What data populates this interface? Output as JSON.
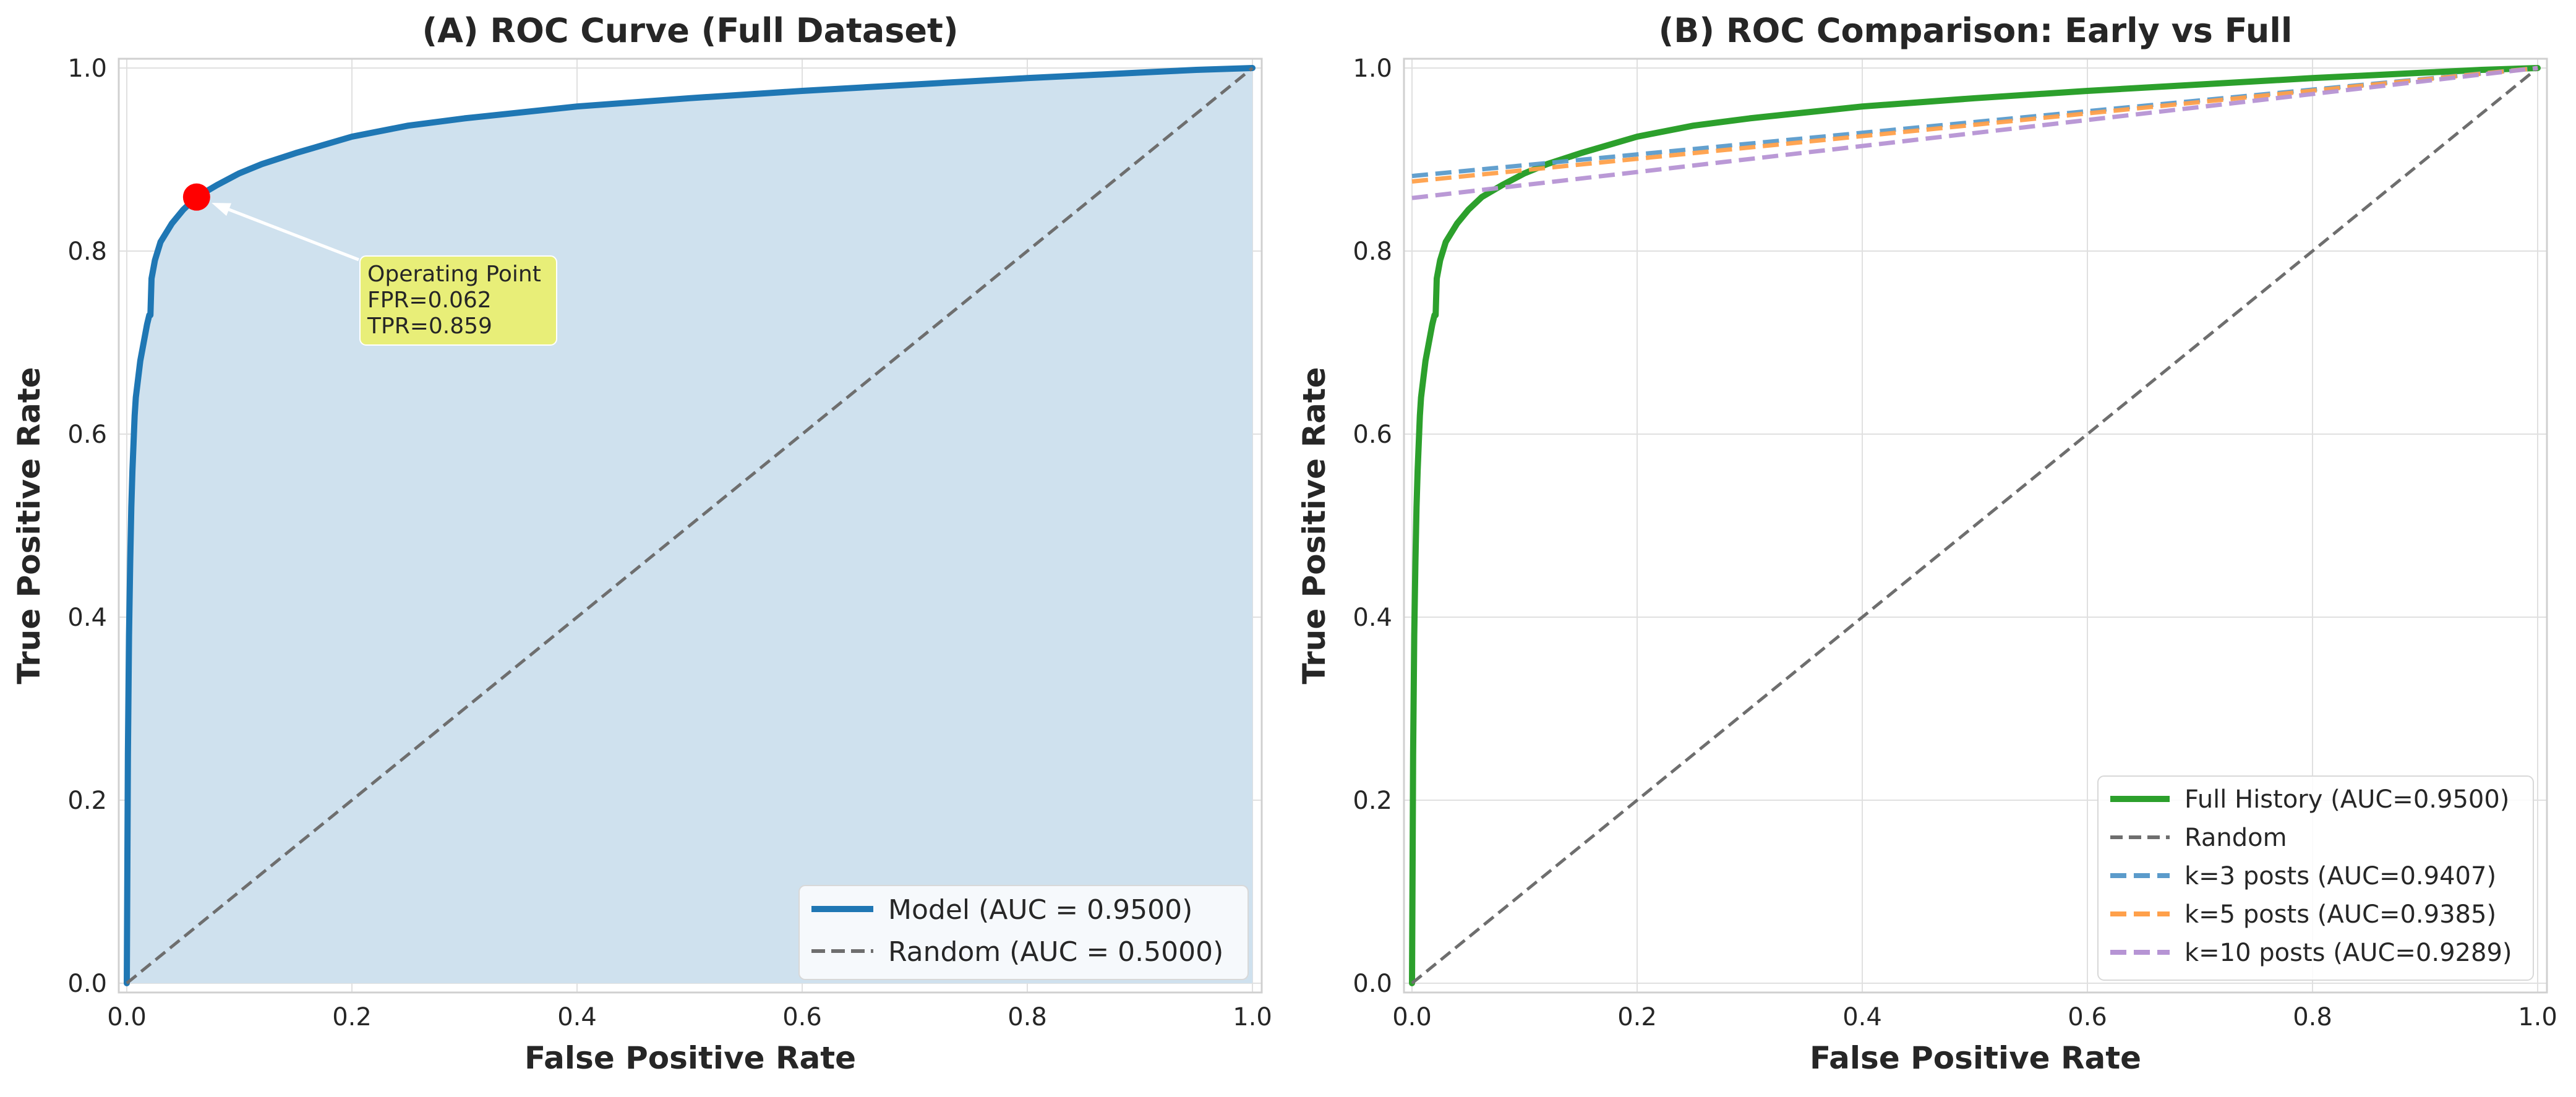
{
  "colors": {
    "model": "#1f77b4",
    "fill": "#cfe1ee",
    "random": "#6e6e6e",
    "grid": "#e0e0e0",
    "frame": "#d0d0d0",
    "operating_point": "#ff0000",
    "annot_box": "#e8ee78",
    "full_history": "#2ca02c",
    "k3": "#5b9bcb",
    "k5": "#ffa04a",
    "k10": "#b694d4"
  },
  "chart_data": [
    {
      "id": "A",
      "type": "line",
      "title": "(A) ROC Curve (Full Dataset)",
      "xlabel": "False Positive Rate",
      "ylabel": "True Positive Rate",
      "xlim": [
        0,
        1
      ],
      "ylim": [
        0,
        1
      ],
      "xticks": [
        "0.0",
        "0.2",
        "0.4",
        "0.6",
        "0.8",
        "1.0"
      ],
      "yticks": [
        "0.0",
        "0.2",
        "0.4",
        "0.6",
        "0.8",
        "1.0"
      ],
      "grid": true,
      "legend_position": "bottom-right",
      "series": [
        {
          "name": "Model (AUC = 0.9500)",
          "style": "solid",
          "color": "#1f77b4",
          "filled": true,
          "x": [
            0,
            0.001,
            0.002,
            0.003,
            0.004,
            0.005,
            0.006,
            0.007,
            0.008,
            0.01,
            0.012,
            0.015,
            0.018,
            0.02,
            0.021,
            0.022,
            0.025,
            0.03,
            0.04,
            0.05,
            0.062,
            0.08,
            0.1,
            0.12,
            0.15,
            0.2,
            0.25,
            0.3,
            0.4,
            0.5,
            0.6,
            0.7,
            0.8,
            0.9,
            0.95,
            1
          ],
          "y": [
            0,
            0.25,
            0.38,
            0.46,
            0.52,
            0.56,
            0.59,
            0.62,
            0.64,
            0.66,
            0.68,
            0.7,
            0.72,
            0.73,
            0.73,
            0.77,
            0.79,
            0.81,
            0.83,
            0.845,
            0.859,
            0.872,
            0.885,
            0.895,
            0.907,
            0.925,
            0.937,
            0.945,
            0.958,
            0.967,
            0.975,
            0.982,
            0.989,
            0.995,
            0.998,
            1
          ]
        },
        {
          "name": "Random (AUC = 0.5000)",
          "style": "dashed",
          "color": "#6e6e6e",
          "x": [
            0,
            1
          ],
          "y": [
            0,
            1
          ]
        }
      ],
      "operating_point": {
        "x": 0.062,
        "y": 0.859,
        "label_lines": [
          "Operating Point",
          "FPR=0.062",
          "TPR=0.859"
        ]
      }
    },
    {
      "id": "B",
      "type": "line",
      "title": "(B) ROC Comparison: Early vs Full",
      "xlabel": "False Positive Rate",
      "ylabel": "True Positive Rate",
      "xlim": [
        0,
        1
      ],
      "ylim": [
        0,
        1
      ],
      "xticks": [
        "0.0",
        "0.2",
        "0.4",
        "0.6",
        "0.8",
        "1.0"
      ],
      "yticks": [
        "0.0",
        "0.2",
        "0.4",
        "0.6",
        "0.8",
        "1.0"
      ],
      "grid": true,
      "legend_position": "bottom-right",
      "series": [
        {
          "name": "Full History (AUC=0.9500)",
          "style": "solid",
          "color": "#2ca02c",
          "x": [
            0,
            0.001,
            0.002,
            0.003,
            0.004,
            0.005,
            0.006,
            0.007,
            0.008,
            0.01,
            0.012,
            0.015,
            0.018,
            0.02,
            0.021,
            0.022,
            0.025,
            0.03,
            0.04,
            0.05,
            0.062,
            0.08,
            0.1,
            0.12,
            0.15,
            0.2,
            0.25,
            0.3,
            0.4,
            0.5,
            0.6,
            0.7,
            0.8,
            0.9,
            0.95,
            1
          ],
          "y": [
            0,
            0.25,
            0.38,
            0.46,
            0.52,
            0.56,
            0.59,
            0.62,
            0.64,
            0.66,
            0.68,
            0.7,
            0.72,
            0.73,
            0.73,
            0.77,
            0.79,
            0.81,
            0.83,
            0.845,
            0.859,
            0.872,
            0.885,
            0.895,
            0.907,
            0.925,
            0.937,
            0.945,
            0.958,
            0.967,
            0.975,
            0.982,
            0.989,
            0.995,
            0.998,
            1
          ]
        },
        {
          "name": "Random",
          "style": "dashed",
          "color": "#6e6e6e",
          "x": [
            0,
            1
          ],
          "y": [
            0,
            1
          ]
        },
        {
          "name": "k=3 posts (AUC=0.9407)",
          "style": "dashed",
          "color": "#5b9bcb",
          "x": [
            0,
            1
          ],
          "y": [
            0.882,
            1
          ]
        },
        {
          "name": "k=5 posts (AUC=0.9385)",
          "style": "dashed",
          "color": "#ffa04a",
          "x": [
            0,
            1
          ],
          "y": [
            0.876,
            1
          ]
        },
        {
          "name": "k=10 posts (AUC=0.9289)",
          "style": "dashed",
          "color": "#b694d4",
          "x": [
            0,
            1
          ],
          "y": [
            0.858,
            1
          ]
        }
      ]
    }
  ]
}
